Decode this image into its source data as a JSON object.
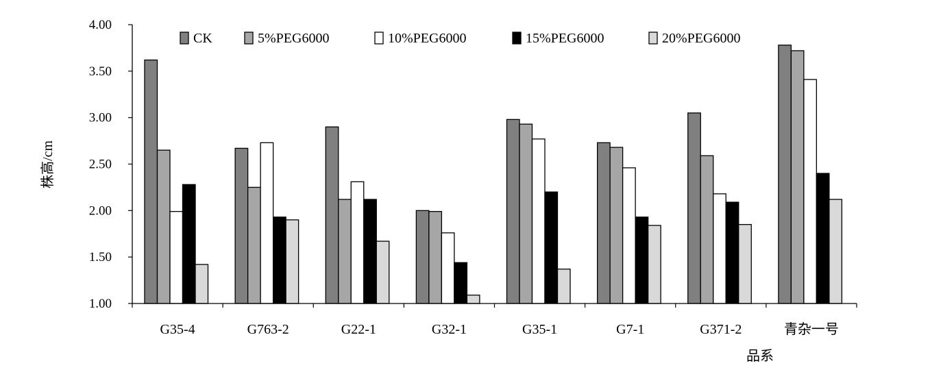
{
  "chart_data": {
    "type": "bar",
    "title": "",
    "xlabel": "品系",
    "ylabel": "株高/cm",
    "ylim": [
      1.0,
      4.0
    ],
    "yticks": [
      "1.00",
      "1.50",
      "2.00",
      "2.50",
      "3.00",
      "3.50",
      "4.00"
    ],
    "grid": false,
    "legend_position": "top",
    "categories": [
      "G35-4",
      "G763-2",
      "G22-1",
      "G32-1",
      "G35-1",
      "G7-1",
      "G371-2",
      "青杂一号"
    ],
    "series": [
      {
        "name": "CK",
        "color": "#808080",
        "values": [
          3.62,
          2.67,
          2.9,
          2.0,
          2.98,
          2.73,
          3.05,
          3.78
        ]
      },
      {
        "name": "5%PEG6000",
        "color": "#a6a6a6",
        "values": [
          2.65,
          2.25,
          2.12,
          1.99,
          2.93,
          2.68,
          2.59,
          3.72
        ]
      },
      {
        "name": "10%PEG6000",
        "color": "#ffffff",
        "values": [
          1.99,
          2.73,
          2.31,
          1.76,
          2.77,
          2.46,
          2.18,
          3.41
        ]
      },
      {
        "name": "15%PEG6000",
        "color": "#000000",
        "values": [
          2.28,
          1.93,
          2.12,
          1.44,
          2.2,
          1.93,
          2.09,
          2.4
        ]
      },
      {
        "name": "20%PEG6000",
        "color": "#d9d9d9",
        "values": [
          1.42,
          1.9,
          1.67,
          1.09,
          1.37,
          1.84,
          1.85,
          2.12
        ]
      }
    ]
  }
}
